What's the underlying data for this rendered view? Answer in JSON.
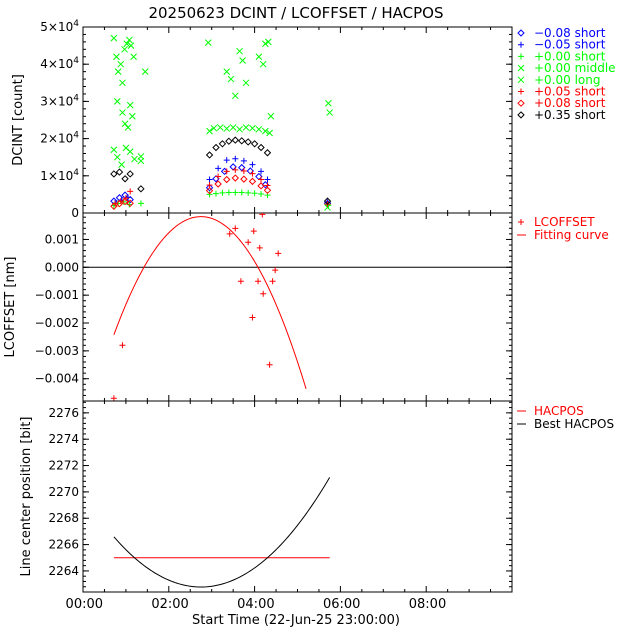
{
  "title": "20250623 DCINT / LCOFFSET / HACPOS",
  "xlabel": "Start Time (22-Jun-25 23:00:00)",
  "x_ticks": [
    "00:00",
    "02:00",
    "04:00",
    "06:00",
    "08:00"
  ],
  "colors": {
    "black": "#000000",
    "blue": "#0000ff",
    "green": "#00ff00",
    "red": "#ff0000",
    "orange": "#ff8040"
  },
  "chart_data": [
    {
      "type": "scatter",
      "ylabel": "DCINT [count]",
      "x_unit": "hours since 23:00",
      "xlim": [
        0,
        10
      ],
      "ylim": [
        0,
        50000
      ],
      "y_ticks": [
        {
          "value": 0,
          "label": "0"
        },
        {
          "value": 10000,
          "label": "1×10",
          "exp": "4"
        },
        {
          "value": 20000,
          "label": "2×10",
          "exp": "4"
        },
        {
          "value": 30000,
          "label": "3×10",
          "exp": "4"
        },
        {
          "value": 40000,
          "label": "4×10",
          "exp": "4"
        },
        {
          "value": 50000,
          "label": "5×10",
          "exp": "4"
        }
      ],
      "legend_position": "right",
      "series": [
        {
          "name": "-0.08 short",
          "marker": "diamond",
          "color": "#0000ff",
          "points": [
            [
              0.72,
              3200
            ],
            [
              0.85,
              4100
            ],
            [
              0.98,
              4800
            ],
            [
              1.1,
              3600
            ],
            [
              2.95,
              6800
            ],
            [
              3.1,
              9200
            ],
            [
              3.3,
              11200
            ],
            [
              3.5,
              12400
            ],
            [
              3.7,
              12200
            ],
            [
              3.9,
              11300
            ],
            [
              4.1,
              9800
            ],
            [
              4.25,
              7600
            ],
            [
              5.7,
              2600
            ]
          ]
        },
        {
          "name": "-0.05 short",
          "marker": "plus",
          "color": "#0000ff",
          "points": [
            [
              0.75,
              2700
            ],
            [
              0.9,
              3500
            ],
            [
              1.05,
              4200
            ],
            [
              2.95,
              9000
            ],
            [
              3.15,
              12000
            ],
            [
              3.35,
              14200
            ],
            [
              3.55,
              14600
            ],
            [
              3.75,
              14000
            ],
            [
              3.95,
              13000
            ],
            [
              4.15,
              11200
            ],
            [
              4.3,
              9000
            ],
            [
              5.7,
              2900
            ]
          ]
        },
        {
          "name": "+0.00 short",
          "marker": "plus",
          "color": "#00ff00",
          "points": [
            [
              0.72,
              2000
            ],
            [
              0.82,
              2600
            ],
            [
              0.95,
              3000
            ],
            [
              1.08,
              2300
            ],
            [
              1.35,
              2600
            ],
            [
              2.95,
              5000
            ],
            [
              3.1,
              5200
            ],
            [
              3.25,
              5400
            ],
            [
              3.4,
              5500
            ],
            [
              3.55,
              5500
            ],
            [
              3.7,
              5500
            ],
            [
              3.85,
              5400
            ],
            [
              4.0,
              5300
            ],
            [
              4.15,
              5100
            ],
            [
              4.3,
              4800
            ],
            [
              5.72,
              2100
            ]
          ]
        },
        {
          "name": "+0.00 middle",
          "marker": "x",
          "color": "#00ff00",
          "points": [
            [
              0.72,
              17000
            ],
            [
              0.8,
              15000
            ],
            [
              0.9,
              13000
            ],
            [
              1.0,
              17500
            ],
            [
              1.1,
              16500
            ],
            [
              1.2,
              14500
            ],
            [
              1.35,
              14000
            ],
            [
              1.35,
              15200
            ],
            [
              2.95,
              22000
            ],
            [
              3.05,
              22800
            ],
            [
              3.2,
              23000
            ],
            [
              3.35,
              22700
            ],
            [
              3.5,
              23000
            ],
            [
              3.65,
              22500
            ],
            [
              3.8,
              23000
            ],
            [
              3.95,
              22800
            ],
            [
              4.1,
              22500
            ],
            [
              4.25,
              22000
            ],
            [
              4.35,
              21500
            ],
            [
              5.7,
              1500
            ]
          ]
        },
        {
          "name": "+0.00 long",
          "marker": "x",
          "color": "#00ff00",
          "points": [
            [
              0.72,
              47000
            ],
            [
              0.78,
              42000
            ],
            [
              0.82,
              38000
            ],
            [
              0.88,
              40000
            ],
            [
              0.92,
              35000
            ],
            [
              0.97,
              44000
            ],
            [
              1.02,
              45500
            ],
            [
              1.08,
              46500
            ],
            [
              1.12,
              45000
            ],
            [
              1.18,
              42000
            ],
            [
              0.8,
              30000
            ],
            [
              0.92,
              27000
            ],
            [
              0.98,
              24000
            ],
            [
              1.05,
              23000
            ],
            [
              1.1,
              29000
            ],
            [
              1.15,
              26000
            ],
            [
              1.45,
              38000
            ],
            [
              2.92,
              45800
            ],
            [
              3.35,
              38000
            ],
            [
              3.45,
              36000
            ],
            [
              3.55,
              31500
            ],
            [
              3.65,
              43500
            ],
            [
              3.72,
              41000
            ],
            [
              3.8,
              35000
            ],
            [
              4.1,
              42000
            ],
            [
              4.2,
              40000
            ],
            [
              4.25,
              45500
            ],
            [
              4.32,
              46000
            ],
            [
              4.38,
              26000
            ],
            [
              5.72,
              29500
            ],
            [
              5.75,
              27000
            ]
          ]
        },
        {
          "name": "+0.05 short",
          "marker": "plus",
          "color": "#ff0000",
          "points": [
            [
              0.75,
              2500
            ],
            [
              0.88,
              3200
            ],
            [
              1.0,
              4000
            ],
            [
              1.1,
              5800
            ],
            [
              2.95,
              7500
            ],
            [
              3.15,
              9800
            ],
            [
              3.35,
              11200
            ],
            [
              3.55,
              11600
            ],
            [
              3.75,
              11300
            ],
            [
              3.95,
              10600
            ],
            [
              4.15,
              9000
            ],
            [
              4.3,
              7400
            ],
            [
              5.7,
              2400
            ]
          ]
        },
        {
          "name": "+0.08 short",
          "marker": "diamond",
          "color": "#ff0000",
          "points": [
            [
              0.72,
              1800
            ],
            [
              0.85,
              2500
            ],
            [
              0.98,
              3100
            ],
            [
              1.1,
              2600
            ],
            [
              2.95,
              6000
            ],
            [
              3.15,
              7800
            ],
            [
              3.35,
              9000
            ],
            [
              3.55,
              9400
            ],
            [
              3.75,
              9100
            ],
            [
              3.95,
              8500
            ],
            [
              4.15,
              7300
            ],
            [
              4.3,
              6100
            ]
          ]
        },
        {
          "name": "+0.35 short",
          "marker": "diamond",
          "color": "#000000",
          "points": [
            [
              0.72,
              10500
            ],
            [
              0.85,
              11000
            ],
            [
              0.98,
              9200
            ],
            [
              1.1,
              10500
            ],
            [
              1.35,
              6500
            ],
            [
              2.95,
              15600
            ],
            [
              3.1,
              17600
            ],
            [
              3.25,
              18600
            ],
            [
              3.4,
              19300
            ],
            [
              3.55,
              19600
            ],
            [
              3.7,
              19400
            ],
            [
              3.85,
              19100
            ],
            [
              4.0,
              18600
            ],
            [
              4.15,
              17600
            ],
            [
              4.3,
              16200
            ],
            [
              5.7,
              3200
            ]
          ]
        }
      ]
    },
    {
      "type": "line",
      "ylabel": "LCOFFSET [nm]",
      "x_unit": "hours since 23:00",
      "xlim": [
        0,
        10
      ],
      "ylim": [
        -0.0048,
        0.00195
      ],
      "y_ticks": [
        {
          "value": -0.004,
          "label": "−0.004"
        },
        {
          "value": -0.003,
          "label": "−0.003"
        },
        {
          "value": -0.002,
          "label": "−0.002"
        },
        {
          "value": -0.001,
          "label": "−0.001"
        },
        {
          "value": 0.0,
          "label": "0.000"
        },
        {
          "value": 0.001,
          "label": "0.001"
        }
      ],
      "zero_line": true,
      "legend_position": "right",
      "series": [
        {
          "name": "LCOFFSET",
          "marker": "plus",
          "color": "#ff0000",
          "points": [
            [
              0.72,
              -0.0047
            ],
            [
              0.92,
              -0.0028
            ],
            [
              3.42,
              0.0012
            ],
            [
              3.55,
              0.0014
            ],
            [
              3.68,
              -0.0005
            ],
            [
              3.85,
              0.0009
            ],
            [
              3.95,
              -0.0018
            ],
            [
              3.98,
              0.0013
            ],
            [
              4.08,
              -0.0005
            ],
            [
              4.12,
              0.0007
            ],
            [
              4.18,
              0.0019
            ],
            [
              4.2,
              -0.00095
            ],
            [
              4.35,
              -0.0035
            ],
            [
              4.42,
              -0.0005
            ],
            [
              4.48,
              -0.0001
            ],
            [
              4.55,
              0.0005
            ]
          ]
        },
        {
          "name": "Fitting curve",
          "style": "line",
          "color": "#ff0000",
          "quadratic": {
            "vertex_x": 2.75,
            "vertex_y": 0.00182,
            "a": -0.00103
          },
          "x_range": [
            0.72,
            5.2
          ]
        }
      ]
    },
    {
      "type": "line",
      "ylabel": "Line center position [bit]",
      "x_unit": "hours since 23:00",
      "xlim": [
        0,
        10
      ],
      "ylim": [
        2262.4,
        2276.9
      ],
      "y_ticks": [
        {
          "value": 2264,
          "label": "2264"
        },
        {
          "value": 2266,
          "label": "2266"
        },
        {
          "value": 2268,
          "label": "2268"
        },
        {
          "value": 2270,
          "label": "2270"
        },
        {
          "value": 2272,
          "label": "2272"
        },
        {
          "value": 2274,
          "label": "2274"
        },
        {
          "value": 2276,
          "label": "2276"
        }
      ],
      "legend_position": "right",
      "series": [
        {
          "name": "HACPOS",
          "style": "line",
          "color": "#ff0000",
          "points": [
            [
              0.72,
              2265.0
            ],
            [
              5.75,
              2265.0
            ]
          ]
        },
        {
          "name": "Best HACPOS",
          "style": "line",
          "color": "#000000",
          "quadratic": {
            "vertex_x": 2.75,
            "vertex_y": 2262.78,
            "a": 0.925
          },
          "x_range": [
            0.72,
            5.75
          ]
        }
      ]
    }
  ]
}
